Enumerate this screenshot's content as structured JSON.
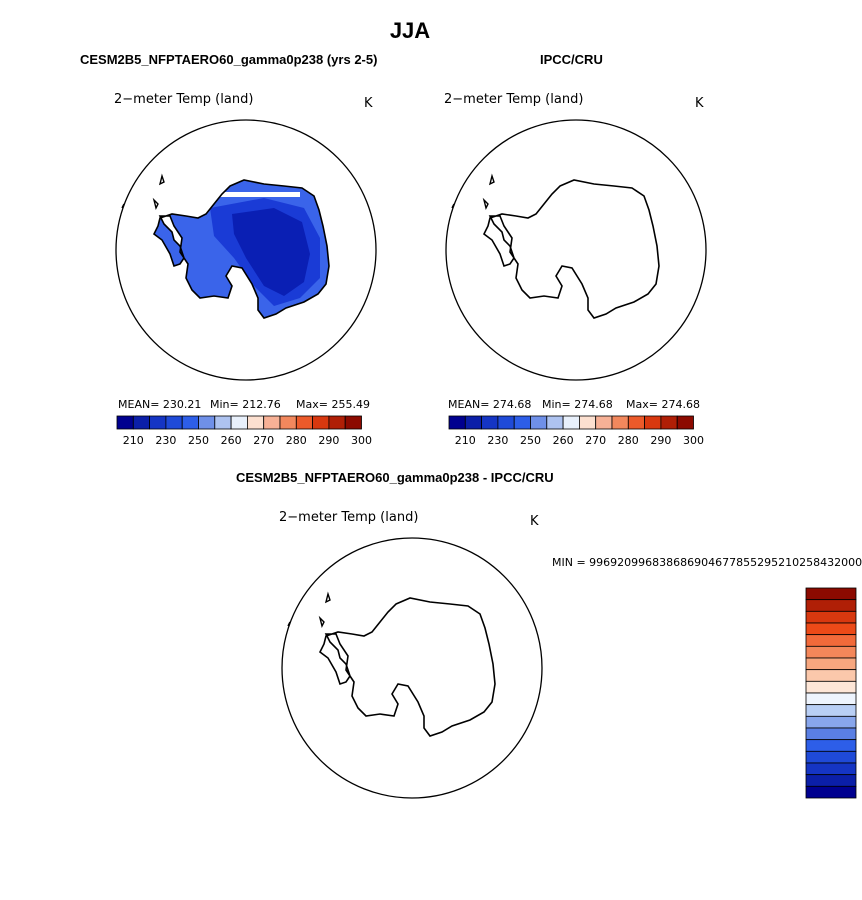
{
  "season": "JJA",
  "panels": [
    {
      "title": "CESM2B5_NFPTAERO60_gamma0p238 (yrs 2-5)",
      "variable": "2−meter Temp (land)",
      "units": "K",
      "mean": "MEAN= 230.21",
      "min": "Min= 212.76",
      "max": "Max= 255.49"
    },
    {
      "title": "IPCC/CRU",
      "variable": "2−meter Temp (land)",
      "units": "K",
      "mean": "MEAN= 274.68",
      "min": "Min= 274.68",
      "max": "Max= 274.68"
    },
    {
      "title": "CESM2B5_NFPTAERO60_gamma0p238 - IPCC/CRU",
      "variable": "2−meter Temp (land)",
      "units": "K",
      "min_label": "MIN = 996920996838686904677855295210258432000"
    }
  ],
  "colors": {
    "temp_scale": [
      "#00008f",
      "#0b1fa8",
      "#1535c4",
      "#1f4ad8",
      "#2d5ee8",
      "#6f90e8",
      "#aec3f0",
      "#e8f0fb",
      "#fce0d0",
      "#f7b196",
      "#f2885d",
      "#ec5a2a",
      "#d8380f",
      "#b01f06",
      "#8c0a00"
    ],
    "diff_scale": [
      "#8c0a00",
      "#b01f06",
      "#d8380f",
      "#ec4a18",
      "#f26a3a",
      "#f4875a",
      "#f7a77f",
      "#fbc8ab",
      "#fde6d7",
      "#eef4fd",
      "#b9cff5",
      "#88a6ec",
      "#5a7fe4",
      "#2d5ee8",
      "#1f4ad8",
      "#1535c4",
      "#0b1fa8",
      "#00008f"
    ],
    "field_dark": "#0a1fb4",
    "field_mid": "#1a3bd6",
    "field_light": "#3a64ea"
  },
  "chart_data": [
    {
      "type": "heatmap",
      "title": "CESM2B5_NFPTAERO60_gamma0p238 (yrs 2-5)",
      "subtitle": "2−meter Temp (land)",
      "units": "K",
      "projection": "south polar stereographic",
      "stats": {
        "mean": 230.21,
        "min": 212.76,
        "max": 255.49
      },
      "colorbar_levels": [
        210,
        230,
        250,
        260,
        270,
        280,
        290,
        300
      ],
      "colorbar_tick_labels": [
        "210",
        "230",
        "250",
        "260",
        "270",
        "280",
        "290",
        "300"
      ]
    },
    {
      "type": "heatmap",
      "title": "IPCC/CRU",
      "subtitle": "2−meter Temp (land)",
      "units": "K",
      "projection": "south polar stereographic",
      "stats": {
        "mean": 274.68,
        "min": 274.68,
        "max": 274.68
      },
      "colorbar_levels": [
        210,
        230,
        250,
        260,
        270,
        280,
        290,
        300
      ],
      "colorbar_tick_labels": [
        "210",
        "230",
        "250",
        "260",
        "270",
        "280",
        "290",
        "300"
      ]
    },
    {
      "type": "heatmap",
      "title": "CESM2B5_NFPTAERO60_gamma0p238 - IPCC/CRU",
      "subtitle": "2−meter Temp (land)",
      "units": "K",
      "projection": "south polar stereographic",
      "min_label": "MIN = 996920996838686904677855295210258432000"
    }
  ]
}
